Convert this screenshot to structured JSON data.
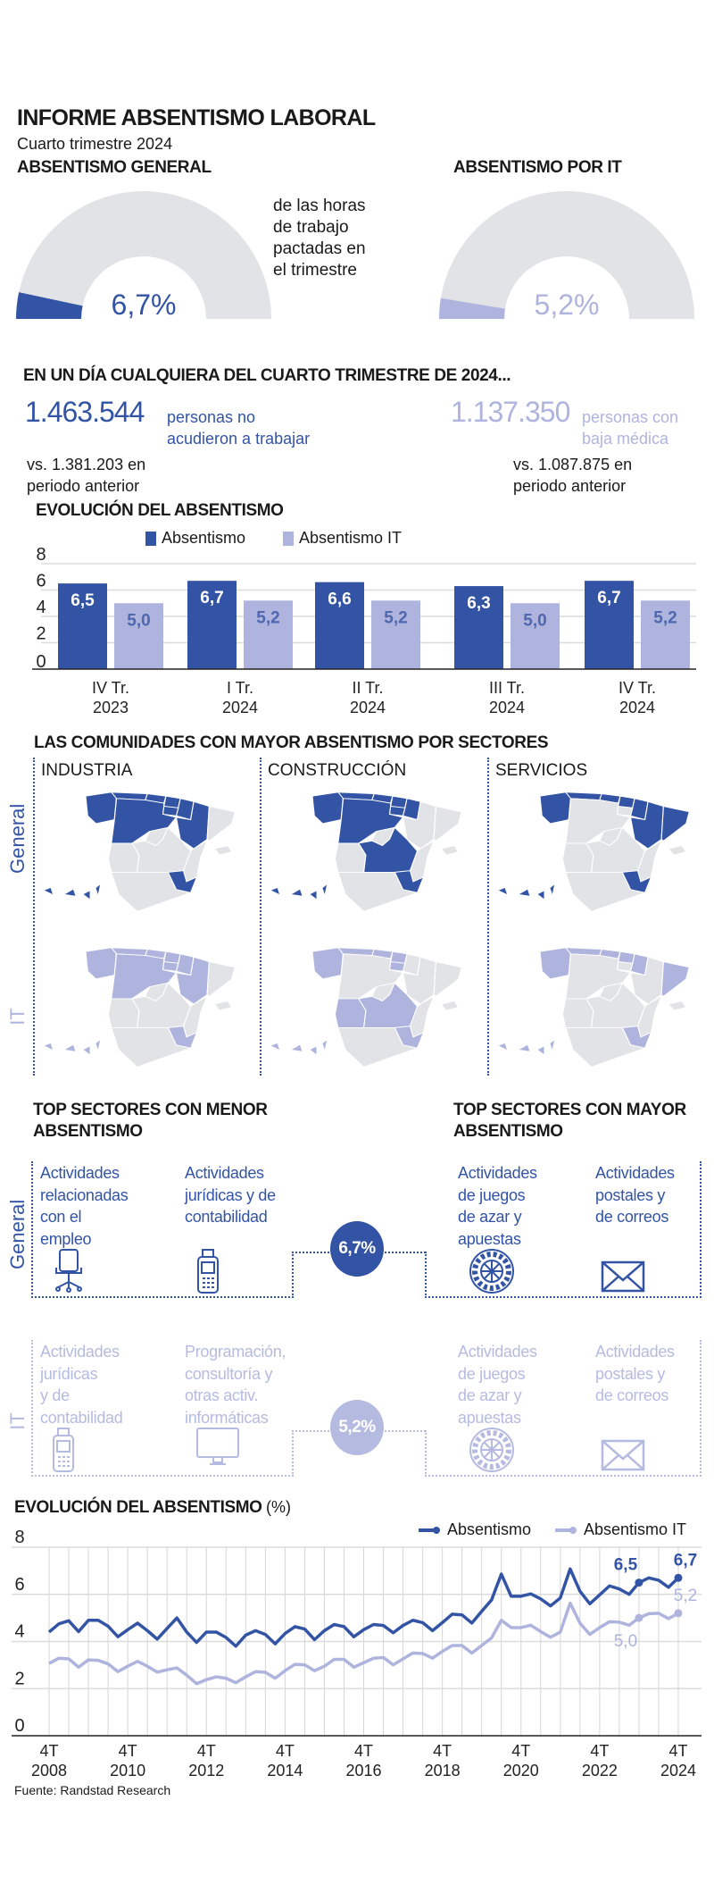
{
  "header": {
    "title": "INFORME ABSENTISMO LABORAL",
    "subtitle": "Cuarto trimestre 2024"
  },
  "gauges": [
    {
      "heading": "ABSENTISMO GENERAL",
      "value": 6.7,
      "value_label": "6,7%",
      "color": "#3354a4",
      "note_lines": [
        "de las horas",
        "de trabajo",
        "pactadas en",
        "el trimestre"
      ]
    },
    {
      "heading": "ABSENTISMO POR IT",
      "value": 5.2,
      "value_label": "5,2%",
      "color": "#aeb4dd"
    }
  ],
  "colors": {
    "dark": "#3354a4",
    "light": "#aeb4dd",
    "track": "#e2e3e6"
  },
  "daily": {
    "heading": "EN UN DÍA CUALQUIERA DEL CUARTO TRIMESTRE DE 2024...",
    "items": [
      {
        "number": "1.463.544",
        "desc_lines": [
          "personas no",
          "acudieron a trabajar"
        ],
        "comparison_lines": [
          "vs. 1.381.203 en",
          "periodo anterior"
        ]
      },
      {
        "number": "1.137.350",
        "desc_lines": [
          "personas con",
          "baja médica"
        ],
        "comparison_lines": [
          "vs. 1.087.875 en",
          "periodo anterior"
        ]
      }
    ]
  },
  "chart_data": [
    {
      "type": "bar",
      "title": "EVOLUCIÓN DEL ABSENTISMO",
      "categories": [
        [
          "IV Tr.",
          "2023"
        ],
        [
          "I Tr.",
          "2024"
        ],
        [
          "II Tr.",
          "2024"
        ],
        [
          "III Tr.",
          "2024"
        ],
        [
          "IV Tr.",
          "2024"
        ]
      ],
      "series": [
        {
          "name": "Absentismo",
          "values": [
            6.5,
            6.7,
            6.6,
            6.3,
            6.7
          ],
          "labels": [
            "6,5",
            "6,7",
            "6,6",
            "6,3",
            "6,7"
          ],
          "color": "#3354a4"
        },
        {
          "name": "Absentismo IT",
          "values": [
            5.0,
            5.2,
            5.2,
            5.0,
            5.2
          ],
          "labels": [
            "5,0",
            "5,2",
            "5,2",
            "5,0",
            "5,2"
          ],
          "color": "#aeb4dd"
        }
      ],
      "ylim": [
        0,
        8
      ],
      "yticks": [
        "0",
        "2",
        "4",
        "6",
        "8"
      ],
      "grid": true,
      "legend": "top"
    },
    {
      "type": "line",
      "title": "EVOLUCIÓN DEL ABSENTISMO",
      "title_unit": "(%)",
      "x_start": "4T 2008",
      "x_end": "4T 2024",
      "x_step": "quarter",
      "xticks": [
        [
          "4T",
          "2008"
        ],
        [
          "4T",
          "2010"
        ],
        [
          "4T",
          "2012"
        ],
        [
          "4T",
          "2014"
        ],
        [
          "4T",
          "2016"
        ],
        [
          "4T",
          "2018"
        ],
        [
          "4T",
          "2020"
        ],
        [
          "4T",
          "2022"
        ],
        [
          "4T",
          "2024"
        ]
      ],
      "yticks": [
        "0",
        "2",
        "4",
        "6",
        "8"
      ],
      "ylim": [
        0,
        8
      ],
      "grid": true,
      "legend": "top-right",
      "series": [
        {
          "name": "Absentismo",
          "color": "#3354a4",
          "values": [
            4.4,
            4.75,
            4.88,
            4.42,
            4.9,
            4.9,
            4.65,
            4.2,
            4.5,
            4.78,
            4.46,
            4.1,
            4.55,
            5.0,
            4.4,
            3.96,
            4.4,
            4.4,
            4.17,
            3.8,
            4.27,
            4.46,
            4.3,
            3.9,
            4.34,
            4.63,
            4.53,
            4.08,
            4.46,
            4.72,
            4.63,
            4.2,
            4.5,
            4.72,
            4.68,
            4.37,
            4.68,
            4.9,
            4.8,
            4.46,
            4.8,
            5.16,
            5.13,
            4.78,
            5.28,
            5.76,
            6.86,
            5.92,
            5.92,
            6.02,
            5.81,
            5.51,
            5.85,
            7.08,
            6.13,
            5.6,
            5.98,
            6.36,
            6.23,
            6.0,
            6.5,
            6.7,
            6.6,
            6.3,
            6.7
          ],
          "annotations": [
            {
              "index": 60,
              "label": "6,5"
            },
            {
              "index": 64,
              "label": "6,7"
            }
          ]
        },
        {
          "name": "Absentismo IT",
          "color": "#aeb4dd",
          "values": [
            3.07,
            3.29,
            3.26,
            2.91,
            3.22,
            3.2,
            3.05,
            2.72,
            2.95,
            3.16,
            2.95,
            2.7,
            2.8,
            2.88,
            2.57,
            2.21,
            2.38,
            2.5,
            2.44,
            2.25,
            2.5,
            2.72,
            2.69,
            2.44,
            2.76,
            3.03,
            3.01,
            2.76,
            2.95,
            3.24,
            3.24,
            2.91,
            3.1,
            3.29,
            3.32,
            3.01,
            3.26,
            3.51,
            3.49,
            3.29,
            3.58,
            3.83,
            3.83,
            3.51,
            3.83,
            4.15,
            4.9,
            4.59,
            4.59,
            4.69,
            4.42,
            4.18,
            4.4,
            5.63,
            4.78,
            4.3,
            4.59,
            4.84,
            4.82,
            4.69,
            5.0,
            5.18,
            5.2,
            4.97,
            5.2
          ],
          "annotations": [
            {
              "index": 60,
              "label": "5,0"
            },
            {
              "index": 64,
              "label": "5,2"
            }
          ]
        }
      ]
    }
  ],
  "maps": {
    "title": "LAS COMUNIDADES CON MAYOR ABSENTISMO POR SECTORES",
    "columns": [
      "INDUSTRIA",
      "CONSTRUCCIÓN",
      "SERVICIOS"
    ],
    "rows": [
      "General",
      "IT"
    ],
    "highlights": {
      "General": [
        [
          "Galicia",
          "Asturias",
          "Cantabria",
          "Pais Vasco",
          "Navarra",
          "La Rioja",
          "Castilla y Leon",
          "Aragon",
          "Murcia",
          "Canarias"
        ],
        [
          "Galicia",
          "Asturias",
          "Cantabria",
          "Pais Vasco",
          "Navarra",
          "La Rioja",
          "Castilla y Leon",
          "Castilla-La Mancha",
          "Murcia",
          "Canarias"
        ],
        [
          "Galicia",
          "Asturias",
          "Cantabria",
          "Pais Vasco",
          "Navarra",
          "Aragon",
          "Cataluna",
          "Murcia",
          "Canarias"
        ]
      ],
      "IT": [
        [
          "Galicia",
          "Asturias",
          "Cantabria",
          "Pais Vasco",
          "Navarra",
          "La Rioja",
          "Castilla y Leon",
          "Aragon",
          "Murcia",
          "Canarias"
        ],
        [
          "Galicia",
          "Asturias",
          "Cantabria",
          "Pais Vasco",
          "La Rioja",
          "Extremadura",
          "Castilla-La Mancha",
          "Murcia",
          "Canarias"
        ],
        [
          "Galicia",
          "Asturias",
          "Cantabria",
          "Pais Vasco",
          "Navarra",
          "Cataluna",
          "Murcia",
          "Canarias"
        ]
      ]
    }
  },
  "sectors": {
    "low_heading": [
      "TOP SECTORES CON MENOR",
      "ABSENTISMO"
    ],
    "high_heading": [
      "TOP SECTORES CON MAYOR",
      "ABSENTISMO"
    ],
    "rows": [
      {
        "label": "General",
        "rate": "6,7%",
        "low": [
          {
            "lines": [
              "Actividades",
              "relacionadas",
              "con el",
              "empleo"
            ],
            "icon": "office-chair"
          },
          {
            "lines": [
              "Actividades",
              "jurídicas y de",
              "contabilidad"
            ],
            "icon": "card-terminal"
          }
        ],
        "high": [
          {
            "lines": [
              "Actividades",
              "de juegos",
              "de azar y",
              "apuestas"
            ],
            "icon": "roulette"
          },
          {
            "lines": [
              "Actividades",
              "postales y",
              "de correos"
            ],
            "icon": "envelope"
          }
        ]
      },
      {
        "label": "IT",
        "rate": "5,2%",
        "low": [
          {
            "lines": [
              "Actividades",
              "jurídicas",
              "y de",
              "contabilidad"
            ],
            "icon": "card-terminal"
          },
          {
            "lines": [
              "Programación,",
              "consultoría y",
              "otras activ.",
              "informáticas"
            ],
            "icon": "monitor"
          }
        ],
        "high": [
          {
            "lines": [
              "Actividades",
              "de juegos",
              "de azar y",
              "apuestas"
            ],
            "icon": "roulette"
          },
          {
            "lines": [
              "Actividades",
              "postales y",
              "de correos"
            ],
            "icon": "envelope"
          }
        ]
      }
    ]
  },
  "source": "Fuente: Randstad Research"
}
